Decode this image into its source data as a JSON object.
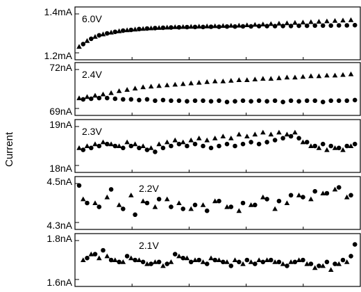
{
  "chart_data": {
    "type": "scatter",
    "ylabel": "Current",
    "marker_legend": {
      "triangle": "triangle-marker",
      "circle": "circle-marker"
    },
    "panels": [
      {
        "label": "6.0V",
        "y_unit": "mA",
        "yticks": [
          "1.4mA",
          "1.2mA"
        ],
        "ylim": [
          1.2,
          1.4
        ],
        "xlim": [
          0,
          70
        ],
        "series": [
          {
            "marker": "triangle",
            "x": [
              0,
              2,
              4,
              6,
              8,
              10,
              12,
              14,
              16,
              18,
              20,
              22,
              24,
              26,
              28,
              30,
              32,
              34,
              36,
              38,
              40,
              42,
              44,
              46,
              48,
              50,
              52,
              54,
              56,
              58,
              60,
              62,
              64,
              66,
              68
            ],
            "y": [
              1.232,
              1.262,
              1.283,
              1.296,
              1.305,
              1.312,
              1.317,
              1.321,
              1.324,
              1.327,
              1.329,
              1.331,
              1.333,
              1.334,
              1.335,
              1.336,
              1.337,
              1.338,
              1.339,
              1.34,
              1.341,
              1.343,
              1.345,
              1.347,
              1.349,
              1.351,
              1.353,
              1.355,
              1.357,
              1.359,
              1.361,
              1.363,
              1.365,
              1.367,
              1.369
            ]
          },
          {
            "marker": "circle",
            "x": [
              1,
              3,
              5,
              7,
              9,
              11,
              13,
              15,
              17,
              19,
              21,
              23,
              25,
              27,
              29,
              31,
              33,
              35,
              37,
              39,
              41,
              43,
              45,
              47,
              49,
              51,
              53,
              55,
              57,
              59,
              61,
              63,
              65,
              67,
              69
            ],
            "y": [
              1.245,
              1.272,
              1.29,
              1.3,
              1.308,
              1.314,
              1.318,
              1.322,
              1.325,
              1.327,
              1.329,
              1.33,
              1.331,
              1.332,
              1.333,
              1.333,
              1.334,
              1.334,
              1.335,
              1.335,
              1.336,
              1.336,
              1.337,
              1.337,
              1.337,
              1.338,
              1.338,
              1.339,
              1.339,
              1.34,
              1.34,
              1.34,
              1.341,
              1.341,
              1.342
            ]
          }
        ]
      },
      {
        "label": "2.4V",
        "y_unit": "nA",
        "yticks": [
          "72nA",
          "69nA"
        ],
        "ylim": [
          69,
          72
        ],
        "xlim": [
          0,
          70
        ],
        "series": [
          {
            "marker": "triangle",
            "x": [
              0,
              2,
              4,
              6,
              8,
              10,
              12,
              14,
              16,
              18,
              20,
              22,
              24,
              26,
              28,
              30,
              32,
              34,
              36,
              38,
              40,
              42,
              44,
              46,
              48,
              50,
              52,
              54,
              56,
              58,
              60,
              62,
              64,
              66,
              68
            ],
            "y": [
              69.8,
              69.9,
              70.0,
              70.1,
              70.2,
              70.35,
              70.45,
              70.55,
              70.65,
              70.7,
              70.75,
              70.8,
              70.85,
              70.9,
              70.95,
              71.0,
              71.05,
              71.1,
              71.1,
              71.15,
              71.2,
              71.2,
              71.25,
              71.3,
              71.3,
              71.35,
              71.4,
              71.4,
              71.45,
              71.5,
              71.5,
              71.55,
              71.55,
              71.6,
              71.65
            ]
          },
          {
            "marker": "circle",
            "x": [
              1,
              3,
              5,
              7,
              9,
              11,
              13,
              15,
              17,
              19,
              21,
              23,
              25,
              27,
              29,
              31,
              33,
              35,
              37,
              39,
              41,
              43,
              45,
              47,
              49,
              51,
              53,
              55,
              57,
              59,
              61,
              63,
              65,
              67,
              69
            ],
            "y": [
              69.7,
              69.75,
              69.8,
              69.8,
              69.75,
              69.7,
              69.7,
              69.65,
              69.7,
              69.6,
              69.65,
              69.6,
              69.6,
              69.55,
              69.6,
              69.6,
              69.55,
              69.6,
              69.5,
              69.55,
              69.6,
              69.55,
              69.6,
              69.55,
              69.6,
              69.5,
              69.6,
              69.55,
              69.6,
              69.6,
              69.5,
              69.6,
              69.6,
              69.6,
              69.65
            ]
          }
        ]
      },
      {
        "label": "2.3V",
        "y_unit": "nA",
        "yticks": [
          "19nA",
          "18nA"
        ],
        "ylim": [
          18,
          19
        ],
        "xlim": [
          0,
          70
        ],
        "series": [
          {
            "marker": "triangle",
            "x": [
              0,
              2,
              4,
              6,
              8,
              10,
              12,
              14,
              16,
              18,
              20,
              22,
              24,
              26,
              28,
              30,
              32,
              34,
              36,
              38,
              40,
              42,
              44,
              46,
              48,
              50,
              52,
              54,
              56,
              58,
              60,
              62,
              64,
              66,
              68
            ],
            "y": [
              18.45,
              18.5,
              18.55,
              18.6,
              18.55,
              18.5,
              18.6,
              18.55,
              18.5,
              18.45,
              18.55,
              18.6,
              18.65,
              18.6,
              18.65,
              18.7,
              18.65,
              18.7,
              18.75,
              18.7,
              18.8,
              18.75,
              18.8,
              18.85,
              18.8,
              18.85,
              18.8,
              18.85,
              18.6,
              18.5,
              18.45,
              18.4,
              18.45,
              18.4,
              18.5
            ]
          },
          {
            "marker": "circle",
            "x": [
              1,
              3,
              5,
              7,
              9,
              11,
              13,
              15,
              17,
              19,
              21,
              23,
              25,
              27,
              29,
              31,
              33,
              35,
              37,
              39,
              41,
              43,
              45,
              47,
              49,
              51,
              53,
              55,
              57,
              59,
              61,
              63,
              65,
              67,
              69
            ],
            "y": [
              18.4,
              18.45,
              18.5,
              18.55,
              18.5,
              18.45,
              18.5,
              18.45,
              18.4,
              18.35,
              18.45,
              18.5,
              18.55,
              18.5,
              18.55,
              18.5,
              18.45,
              18.5,
              18.55,
              18.5,
              18.55,
              18.6,
              18.55,
              18.6,
              18.65,
              18.7,
              18.75,
              18.7,
              18.6,
              18.5,
              18.55,
              18.5,
              18.45,
              18.5,
              18.55
            ]
          }
        ]
      },
      {
        "label": "2.2V",
        "y_unit": "nA",
        "yticks": [
          "4.5nA",
          "4.3nA"
        ],
        "ylim": [
          4.3,
          4.5
        ],
        "xlim": [
          0,
          70
        ],
        "series": [
          {
            "marker": "triangle",
            "x": [
              1,
              4,
              7,
              10,
              13,
              16,
              19,
              22,
              25,
              28,
              31,
              34,
              37,
              40,
              43,
              46,
              49,
              52,
              55,
              58,
              61,
              64,
              67
            ],
            "y": [
              4.42,
              4.4,
              4.43,
              4.39,
              4.44,
              4.41,
              4.38,
              4.42,
              4.4,
              4.37,
              4.39,
              4.41,
              4.38,
              4.36,
              4.39,
              4.43,
              4.37,
              4.4,
              4.44,
              4.42,
              4.45,
              4.47,
              4.43
            ]
          },
          {
            "marker": "circle",
            "x": [
              0,
              2,
              5,
              8,
              11,
              14,
              17,
              20,
              23,
              26,
              29,
              32,
              35,
              38,
              41,
              44,
              47,
              50,
              53,
              56,
              59,
              62,
              65,
              68
            ],
            "y": [
              4.49,
              4.4,
              4.38,
              4.47,
              4.37,
              4.34,
              4.4,
              4.42,
              4.38,
              4.37,
              4.39,
              4.36,
              4.41,
              4.38,
              4.4,
              4.39,
              4.42,
              4.41,
              4.44,
              4.43,
              4.46,
              4.45,
              4.48,
              4.44
            ]
          }
        ]
      },
      {
        "label": "2.1V",
        "y_unit": "nA",
        "yticks": [
          "1.8nA",
          "1.6nA"
        ],
        "ylim": [
          1.6,
          1.8
        ],
        "xlim": [
          0,
          70
        ],
        "series": [
          {
            "marker": "triangle",
            "x": [
              1,
              3,
              5,
              7,
              9,
              11,
              13,
              15,
              17,
              19,
              21,
              23,
              25,
              27,
              29,
              31,
              33,
              35,
              37,
              39,
              41,
              43,
              45,
              47,
              49,
              51,
              53,
              55,
              57,
              59,
              61,
              63,
              65,
              67
            ],
            "y": [
              1.7,
              1.73,
              1.71,
              1.72,
              1.7,
              1.69,
              1.71,
              1.7,
              1.68,
              1.69,
              1.67,
              1.69,
              1.72,
              1.71,
              1.7,
              1.69,
              1.71,
              1.7,
              1.69,
              1.7,
              1.68,
              1.69,
              1.7,
              1.7,
              1.69,
              1.68,
              1.69,
              1.7,
              1.68,
              1.66,
              1.67,
              1.65,
              1.68,
              1.69
            ]
          },
          {
            "marker": "circle",
            "x": [
              2,
              4,
              6,
              8,
              10,
              12,
              14,
              16,
              18,
              20,
              22,
              24,
              26,
              28,
              30,
              32,
              34,
              36,
              38,
              40,
              42,
              44,
              46,
              48,
              50,
              52,
              54,
              56,
              58,
              60,
              62,
              64,
              66,
              68,
              69
            ],
            "y": [
              1.71,
              1.73,
              1.75,
              1.7,
              1.69,
              1.72,
              1.7,
              1.69,
              1.68,
              1.69,
              1.68,
              1.73,
              1.71,
              1.69,
              1.7,
              1.68,
              1.7,
              1.69,
              1.67,
              1.69,
              1.7,
              1.68,
              1.69,
              1.7,
              1.69,
              1.67,
              1.69,
              1.7,
              1.68,
              1.67,
              1.69,
              1.68,
              1.7,
              1.72,
              1.78
            ]
          }
        ]
      }
    ]
  }
}
